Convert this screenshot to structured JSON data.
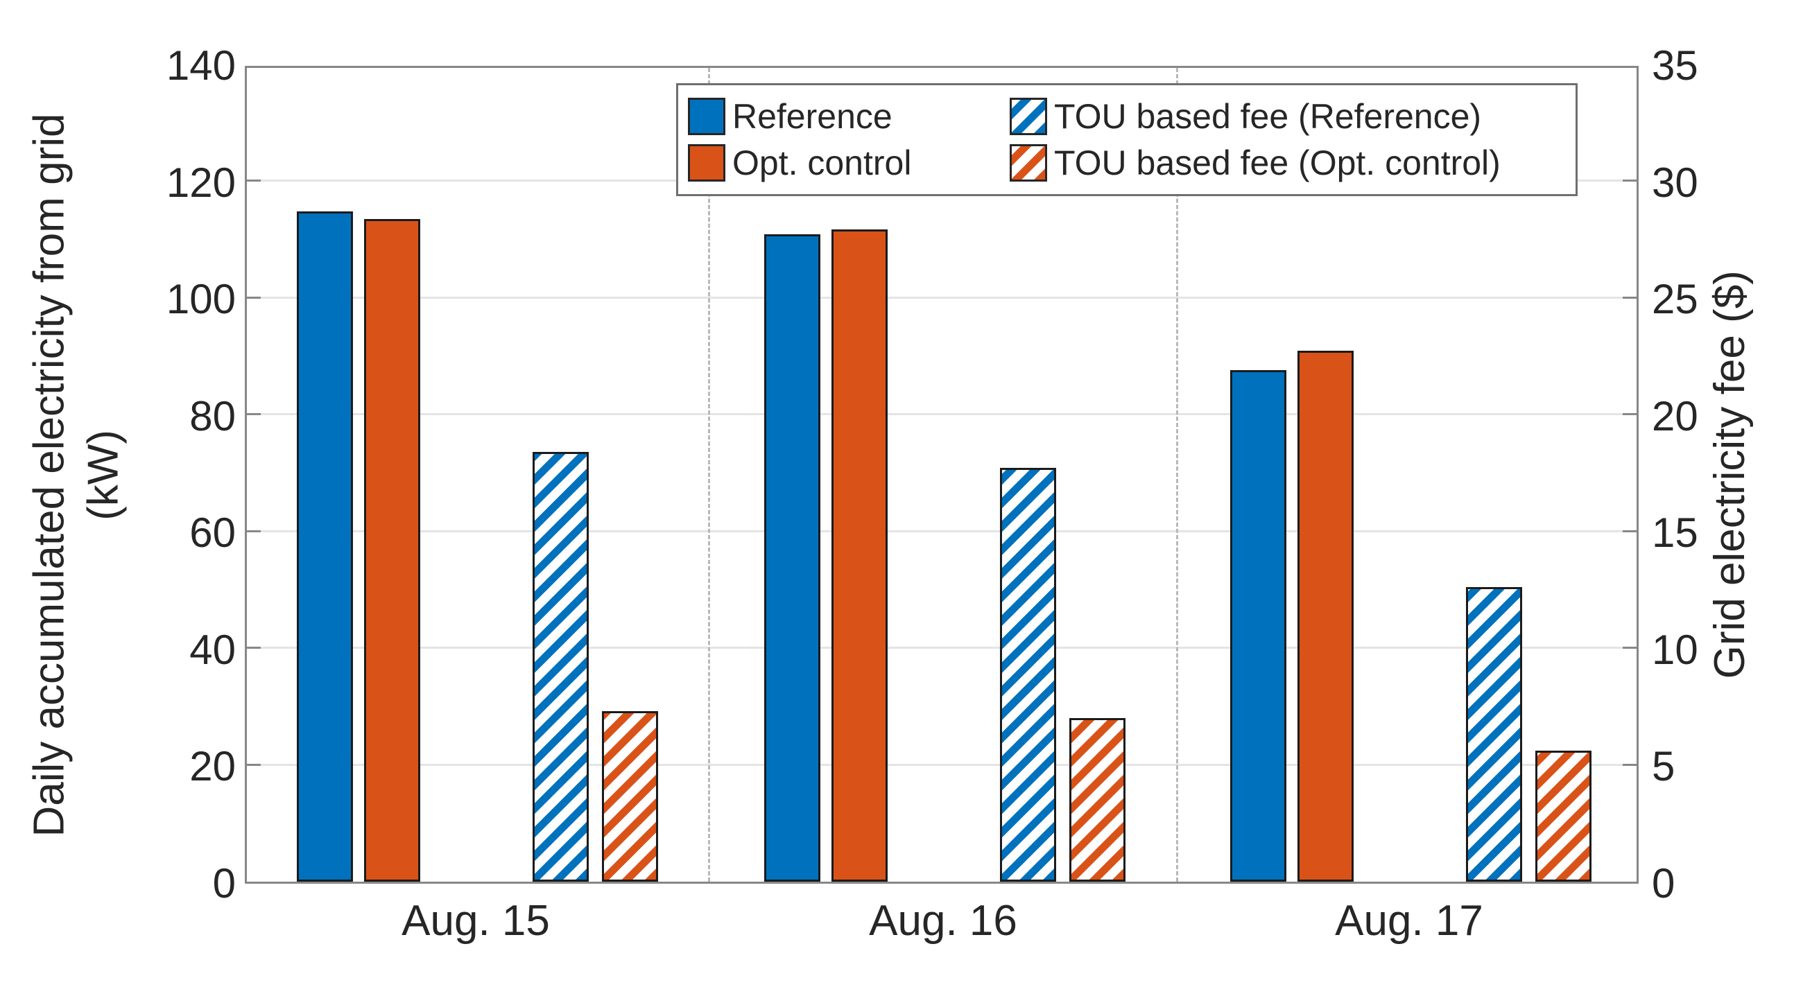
{
  "chart_data": {
    "type": "bar",
    "title": "",
    "categories": [
      "Aug. 15",
      "Aug. 16",
      "Aug. 17"
    ],
    "series": [
      {
        "name": "Reference",
        "axis": "left",
        "pattern": "solid",
        "color": "#0072BD",
        "values": [
          114.7,
          110.8,
          87.6
        ]
      },
      {
        "name": "Opt. control",
        "axis": "left",
        "pattern": "solid",
        "color": "#D95319",
        "values": [
          113.4,
          111.6,
          90.9
        ]
      },
      {
        "name": "TOU based fee (Reference)",
        "axis": "right",
        "pattern": "hatched",
        "color": "#0072BD",
        "values": [
          18.4,
          17.7,
          12.6
        ]
      },
      {
        "name": "TOU based fee (Opt. control)",
        "axis": "right",
        "pattern": "hatched",
        "color": "#D95319",
        "values": [
          7.3,
          7.0,
          5.6
        ]
      }
    ],
    "left_axis": {
      "label_line1": "Daily accumulated electricity from grid",
      "label_line2": "(kW)",
      "min": 0,
      "max": 140,
      "ticks": [
        0,
        20,
        40,
        60,
        80,
        100,
        120,
        140
      ]
    },
    "right_axis": {
      "label": "Grid electricity fee ($)",
      "min": 0,
      "max": 35,
      "ticks": [
        0,
        5,
        10,
        15,
        20,
        25,
        30,
        35
      ]
    },
    "grid": {
      "horizontal": true,
      "vertical": false,
      "color": "#e4e4e4"
    },
    "separators": {
      "style": "dashed",
      "color": "#b8b8b8",
      "between_groups": true
    },
    "legend": {
      "position": "top-inside",
      "items": [
        "Reference",
        "TOU based fee (Reference)",
        "Opt. control",
        "TOU based fee (Opt. control)"
      ]
    },
    "colors": {
      "reference_blue": "#0072BD",
      "opt_orange": "#D95319",
      "axis_gray": "#878787",
      "text": "#262626",
      "hatch_background": "#ffffff"
    }
  }
}
